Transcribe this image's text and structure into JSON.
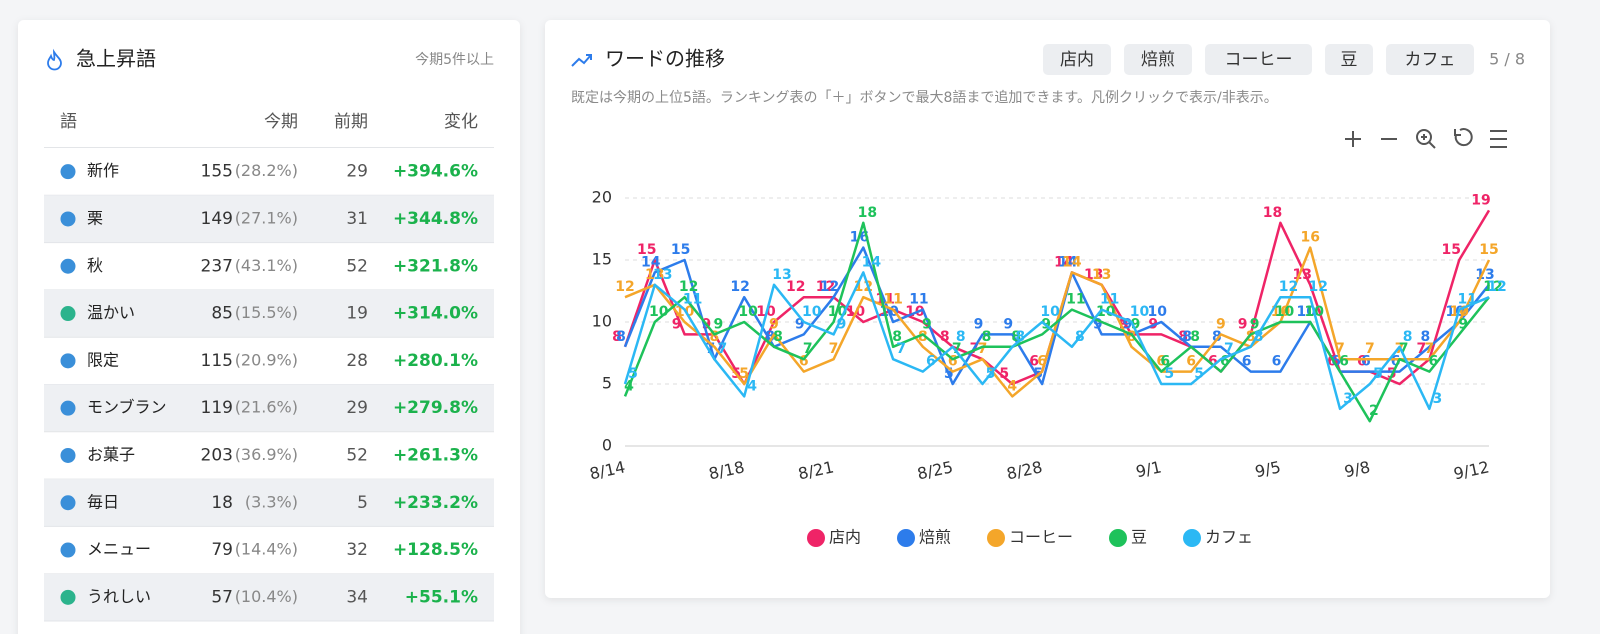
{
  "trending": {
    "title": "急上昇語",
    "note": "今期5件以上",
    "columns": [
      "語",
      "今期",
      "前期",
      "変化"
    ],
    "rows": [
      {
        "word": "新作",
        "color": "#3a8fd9",
        "count": 155,
        "share": "(28.2%)",
        "prev": 29,
        "change": "+394.6%"
      },
      {
        "word": "栗",
        "color": "#3a8fd9",
        "count": 149,
        "share": "(27.1%)",
        "prev": 31,
        "change": "+344.8%"
      },
      {
        "word": "秋",
        "color": "#3a8fd9",
        "count": 237,
        "share": "(43.1%)",
        "prev": 52,
        "change": "+321.8%"
      },
      {
        "word": "温かい",
        "color": "#2bb38c",
        "count": 85,
        "share": "(15.5%)",
        "prev": 19,
        "change": "+314.0%"
      },
      {
        "word": "限定",
        "color": "#3a8fd9",
        "count": 115,
        "share": "(20.9%)",
        "prev": 28,
        "change": "+280.1%"
      },
      {
        "word": "モンブラン",
        "color": "#3a8fd9",
        "count": 119,
        "share": "(21.6%)",
        "prev": 29,
        "change": "+279.8%"
      },
      {
        "word": "お菓子",
        "color": "#3a8fd9",
        "count": 203,
        "share": "(36.9%)",
        "prev": 52,
        "change": "+261.3%"
      },
      {
        "word": "毎日",
        "color": "#3a8fd9",
        "count": 18,
        "share": "(3.3%)",
        "prev": 5,
        "change": "+233.2%"
      },
      {
        "word": "メニュー",
        "color": "#3a8fd9",
        "count": 79,
        "share": "(14.4%)",
        "prev": 32,
        "change": "+128.5%"
      },
      {
        "word": "うれしい",
        "color": "#2bb38c",
        "count": 57,
        "share": "(10.4%)",
        "prev": 34,
        "change": "+55.1%"
      }
    ]
  },
  "trend_panel": {
    "title": "ワードの推移",
    "chips": [
      "店内",
      "焙煎",
      "コーヒー",
      "豆",
      "カフェ"
    ],
    "chip_count": "5 / 8",
    "description": "既定は今期の上位5語。ランキング表の「＋」ボタンで最大8語まで追加できます。凡例クリックで表示/非表示。"
  },
  "chart_data": {
    "type": "line",
    "categories": [
      "8/14",
      null,
      null,
      null,
      "8/18",
      null,
      null,
      "8/21",
      null,
      null,
      null,
      "8/25",
      null,
      null,
      "8/28",
      null,
      null,
      null,
      "9/1",
      null,
      null,
      null,
      "9/5",
      null,
      null,
      "9/8",
      null,
      null,
      null,
      "9/12"
    ],
    "series": [
      {
        "name": "店内",
        "color": "#ef2467",
        "values": [
          8,
          15,
          9,
          9,
          5,
          10,
          12,
          12,
          10,
          11,
          10,
          8,
          7,
          5,
          6,
          14,
          13,
          9,
          9,
          8,
          6,
          9,
          18,
          13,
          6,
          6,
          5,
          7,
          15,
          19
        ]
      },
      {
        "name": "焙煎",
        "color": "#2d7ceb",
        "values": [
          8,
          14,
          15,
          7,
          12,
          8,
          9,
          12,
          16,
          10,
          11,
          5,
          9,
          9,
          5,
          14,
          9,
          9,
          10,
          8,
          8,
          6,
          6,
          10,
          6,
          6,
          6,
          8,
          10,
          13
        ]
      },
      {
        "name": "コーヒー",
        "color": "#f4a62a",
        "values": [
          12,
          13,
          10,
          8,
          5,
          9,
          6,
          7,
          12,
          11,
          8,
          6,
          7,
          4,
          6,
          14,
          13,
          8,
          6,
          6,
          9,
          8,
          10,
          16,
          7,
          7,
          7,
          7,
          10,
          15
        ]
      },
      {
        "name": "豆",
        "color": "#1ec25b",
        "values": [
          4,
          10,
          12,
          9,
          10,
          8,
          7,
          10,
          18,
          8,
          9,
          7,
          8,
          8,
          9,
          11,
          10,
          9,
          6,
          8,
          6,
          9,
          10,
          10,
          6,
          2,
          7,
          6,
          9,
          12
        ]
      },
      {
        "name": "カフェ",
        "color": "#2bb8f4",
        "values": [
          5,
          13,
          11,
          7,
          4,
          13,
          10,
          9,
          14,
          7,
          6,
          8,
          5,
          8,
          10,
          8,
          11,
          10,
          5,
          5,
          7,
          8,
          12,
          12,
          3,
          5,
          8,
          3,
          11,
          12
        ]
      }
    ],
    "ylim": [
      0,
      20
    ],
    "yticks": [
      0,
      5,
      10,
      15,
      20
    ],
    "grid": true,
    "legend": "bottom"
  }
}
